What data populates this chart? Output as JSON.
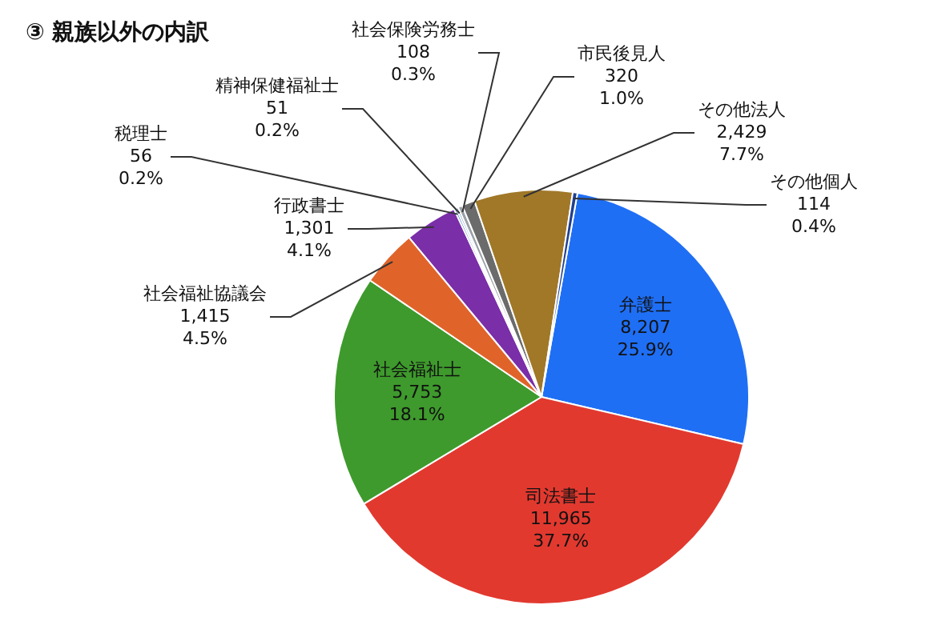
{
  "chart_data": {
    "type": "pie",
    "title": "③ 親族以外の内訳",
    "categories": [
      "弁護士",
      "司法書士",
      "社会福祉士",
      "社会福祉協議会",
      "行政書士",
      "税理士",
      "精神保健福祉士",
      "社会保険労務士",
      "市民後見人",
      "その他法人",
      "その他個人"
    ],
    "values": [
      8207,
      11965,
      5753,
      1415,
      1301,
      56,
      51,
      108,
      320,
      2429,
      114
    ],
    "colors": [
      "#1f6ff5",
      "#e2392f",
      "#3e9a2c",
      "#e0642a",
      "#7a2ea8",
      "#4f86c6",
      "#3a5fa8",
      "#9aa0a6",
      "#6b6b6b",
      "#a07828",
      "#1f3f8f"
    ],
    "value_labels": [
      "8,207\n25.9%",
      "11,965\n37.7%",
      "5,753\n18.1%",
      "1,415\n4.5%",
      "1,301\n4.1%",
      "56\n0.2%",
      "51\n0.2%",
      "108\n0.3%",
      "320\n1.0%",
      "2,429\n7.7%",
      "114\n0.4%"
    ]
  }
}
